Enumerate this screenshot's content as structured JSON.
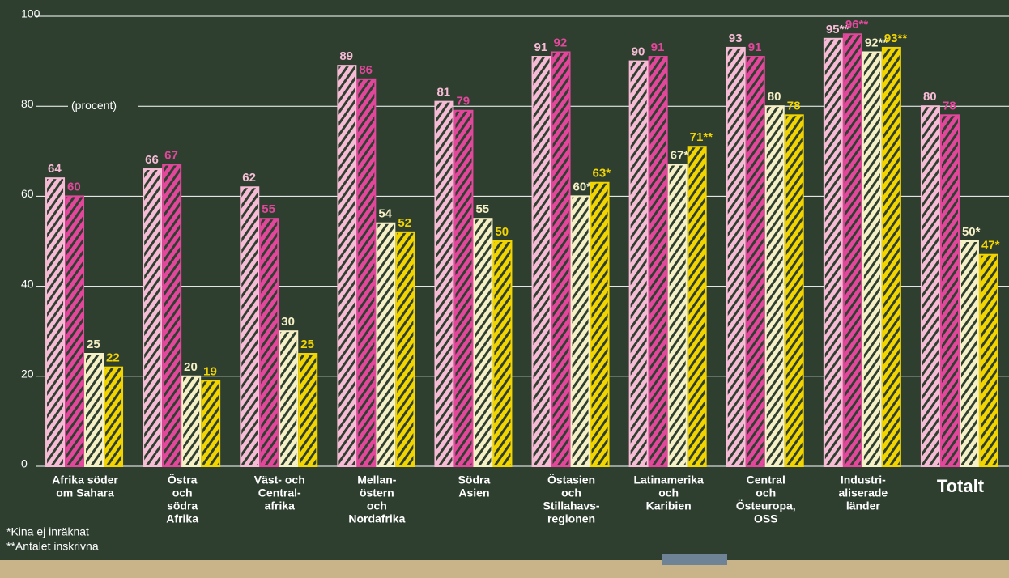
{
  "chart_data": {
    "type": "bar",
    "categories": [
      [
        "Afrika söder",
        "om Sahara"
      ],
      [
        "Östra",
        "och",
        "södra",
        "Afrika"
      ],
      [
        "Väst- och",
        "Central-",
        "afrika"
      ],
      [
        "Mellan-",
        "östern",
        "och",
        "Nordafrika"
      ],
      [
        "Södra",
        "Asien"
      ],
      [
        "Östasien",
        "och",
        "Stillahavs-",
        "regionen"
      ],
      [
        "Latinamerika",
        "och",
        "Karibien"
      ],
      [
        "Central",
        "och",
        "Östeuropa,",
        "OSS"
      ],
      [
        "Industri-",
        "aliserade",
        "länder"
      ],
      [
        "Totalt"
      ]
    ],
    "series": [
      {
        "color": "#f6bcd5",
        "values": [
          64,
          66,
          62,
          89,
          81,
          91,
          90,
          93,
          95,
          80
        ],
        "value_labels": [
          "64",
          "66",
          "62",
          "89",
          "81",
          "91",
          "90",
          "93",
          "95**",
          "80"
        ]
      },
      {
        "color": "#e2479b",
        "values": [
          60,
          67,
          55,
          86,
          79,
          92,
          91,
          91,
          96,
          78
        ],
        "value_labels": [
          "60",
          "67",
          "55",
          "86",
          "79",
          "92",
          "91",
          "91",
          "96**",
          "78"
        ]
      },
      {
        "color": "#f6f0c6",
        "values": [
          25,
          20,
          30,
          54,
          55,
          60,
          67,
          80,
          92,
          50
        ],
        "value_labels": [
          "25",
          "20",
          "30",
          "54",
          "55",
          "60*",
          "67**",
          "80",
          "92**",
          "50*"
        ]
      },
      {
        "color": "#f2d400",
        "values": [
          22,
          19,
          25,
          52,
          50,
          63,
          71,
          78,
          93,
          47
        ],
        "value_labels": [
          "22",
          "19",
          "25",
          "52",
          "50",
          "63*",
          "71**",
          "78",
          "93**",
          "47*"
        ]
      }
    ],
    "ylim": [
      0,
      100
    ],
    "yticks": [
      0,
      20,
      40,
      60,
      80,
      100
    ],
    "grid": true,
    "annotation": "(procent)",
    "footnotes": [
      "*Kina ej inräknat",
      "**Antalet inskrivna"
    ]
  }
}
